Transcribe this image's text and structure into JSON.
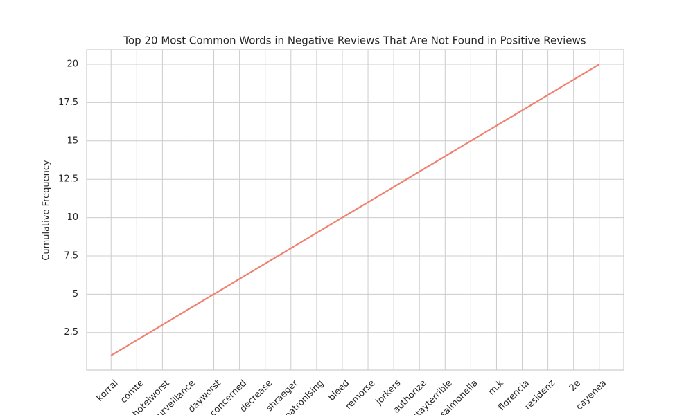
{
  "chart_data": {
    "type": "line",
    "title": "Top 20 Most Common Words in Negative Reviews That Are Not Found in Positive Reviews",
    "y_label": "Cumulative Frequency",
    "categories": [
      "korral",
      "comte",
      "hotelworst",
      "surveillance",
      "dayworst",
      "concerned",
      "decrease",
      "shraeger",
      "patronising",
      "bleed",
      "remorse",
      "jorkers",
      "authorize",
      "stayterrible",
      "salmonella",
      "m.k",
      "florencia",
      "residenz",
      "2e",
      "cayenea"
    ],
    "values": [
      1,
      2,
      3,
      4,
      5,
      6,
      7,
      8,
      9,
      10,
      11,
      12,
      13,
      14,
      15,
      16,
      17,
      18,
      19,
      20
    ],
    "color": "#f08070",
    "ylim": [
      0.05,
      20.95
    ],
    "yticks": [
      2.5,
      5.0,
      7.5,
      10.0,
      12.5,
      15.0,
      17.5,
      20.0
    ],
    "grid": true
  }
}
